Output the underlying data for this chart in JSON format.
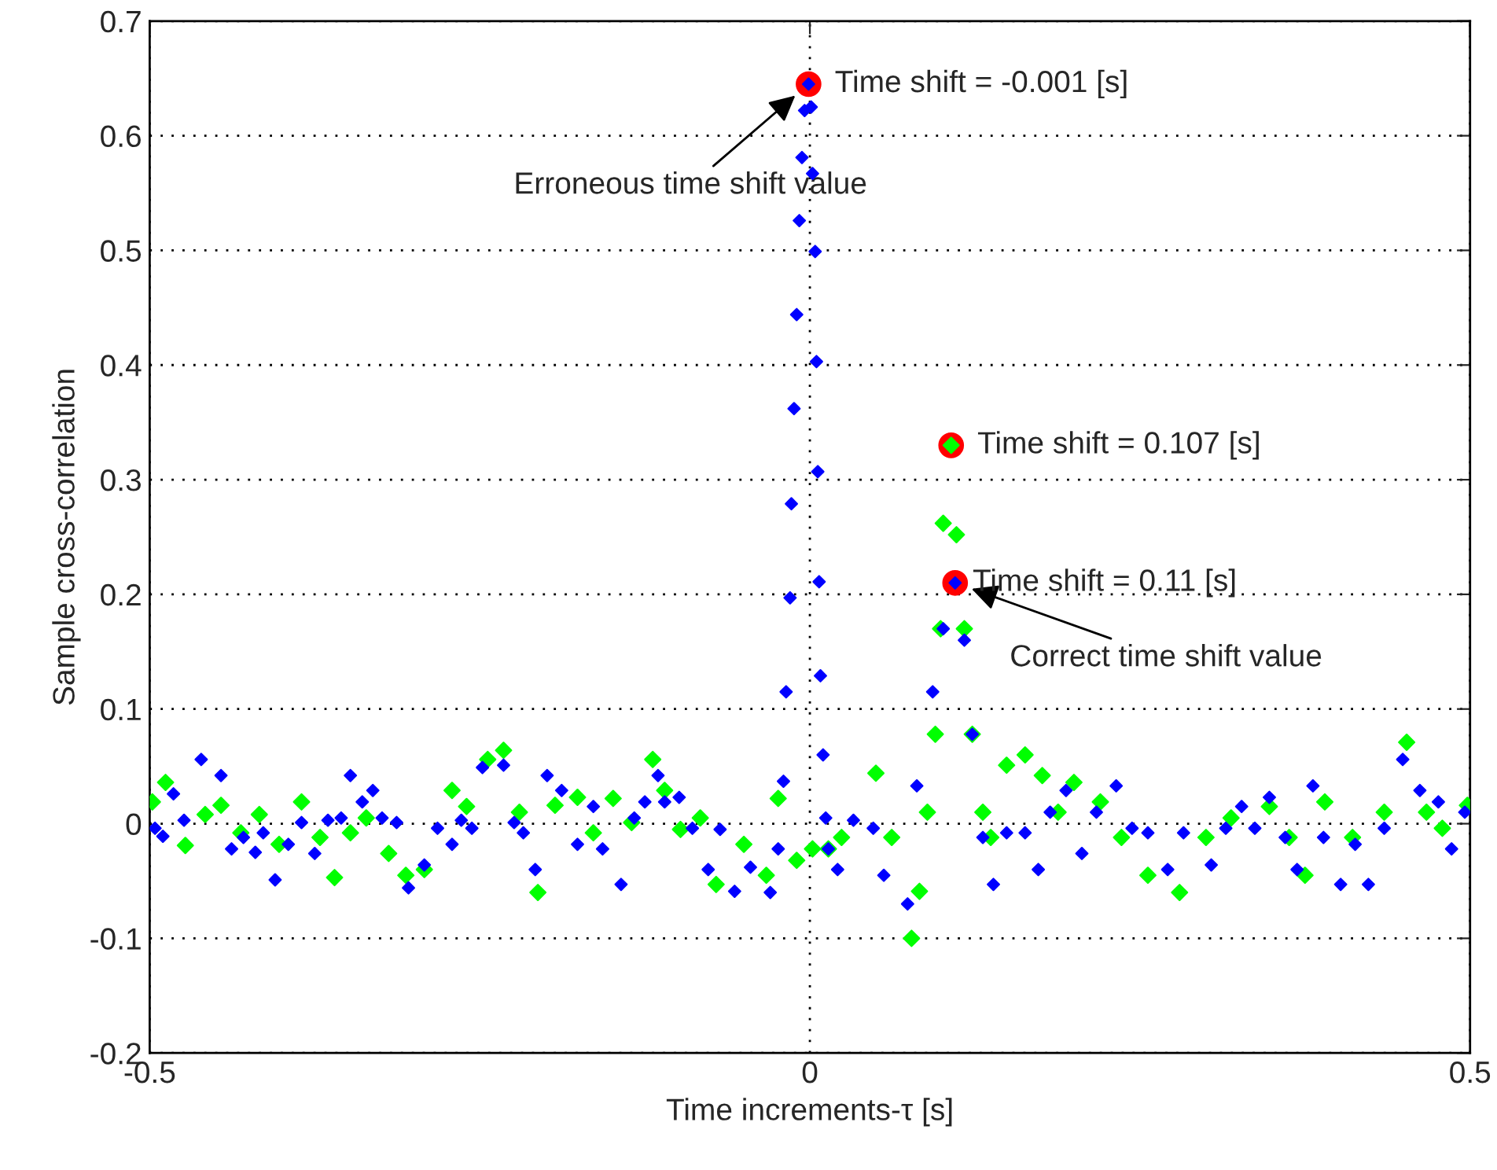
{
  "chart_data": {
    "type": "scatter",
    "xlabel": "Time increments-τ [s]",
    "ylabel": "Sample cross-correlation",
    "xlim": [
      -0.5,
      0.5
    ],
    "xticks": [
      -0.5,
      0,
      0.5
    ],
    "ylim": [
      -0.2,
      0.7
    ],
    "yticks": [
      -0.2,
      -0.1,
      0,
      0.1,
      0.2,
      0.3,
      0.4,
      0.5,
      0.6,
      0.7
    ],
    "grid": true,
    "marker": "diamond",
    "legend": false,
    "series": [
      {
        "color": "#00ff00",
        "x": [
          -0.498,
          -0.488,
          -0.473,
          -0.458,
          -0.446,
          -0.431,
          -0.417,
          -0.402,
          -0.385,
          -0.371,
          -0.36,
          -0.348,
          -0.336,
          -0.319,
          -0.306,
          -0.292,
          -0.271,
          -0.26,
          -0.244,
          -0.232,
          -0.22,
          -0.206,
          -0.193,
          -0.176,
          -0.164,
          -0.149,
          -0.135,
          -0.119,
          -0.11,
          -0.098,
          -0.083,
          -0.071,
          -0.05,
          -0.033,
          -0.024,
          -0.01,
          0.002,
          0.014,
          0.024,
          0.05,
          0.062,
          0.077,
          0.083,
          0.089,
          0.095,
          0.099,
          0.101,
          0.107,
          0.111,
          0.117,
          0.123,
          0.131,
          0.137,
          0.149,
          0.163,
          0.176,
          0.188,
          0.2,
          0.22,
          0.236,
          0.256,
          0.28,
          0.3,
          0.319,
          0.348,
          0.363,
          0.375,
          0.39,
          0.411,
          0.435,
          0.452,
          0.467,
          0.479,
          0.498
        ],
        "values": [
          0.019,
          0.036,
          -0.019,
          0.008,
          0.016,
          -0.008,
          0.008,
          -0.018,
          0.019,
          -0.012,
          -0.047,
          -0.008,
          0.005,
          -0.026,
          -0.045,
          -0.04,
          0.029,
          0.015,
          0.056,
          0.064,
          0.01,
          -0.06,
          0.016,
          0.023,
          -0.008,
          0.022,
          0.001,
          0.056,
          0.029,
          -0.005,
          0.005,
          -0.053,
          -0.018,
          -0.045,
          0.022,
          -0.032,
          -0.022,
          -0.022,
          -0.012,
          0.044,
          -0.012,
          -0.1,
          -0.059,
          0.01,
          0.078,
          0.17,
          0.262,
          0.33,
          0.252,
          0.17,
          0.078,
          0.01,
          -0.012,
          0.051,
          0.06,
          0.042,
          0.01,
          0.036,
          0.019,
          -0.012,
          -0.045,
          -0.06,
          -0.012,
          0.005,
          0.015,
          -0.012,
          -0.045,
          0.019,
          -0.012,
          0.01,
          0.071,
          0.01,
          -0.004,
          0.016
        ]
      },
      {
        "color": "#0000ff",
        "x": [
          -0.496,
          -0.49,
          -0.482,
          -0.474,
          -0.461,
          -0.446,
          -0.438,
          -0.429,
          -0.42,
          -0.414,
          -0.405,
          -0.395,
          -0.385,
          -0.375,
          -0.365,
          -0.355,
          -0.348,
          -0.339,
          -0.331,
          -0.324,
          -0.313,
          -0.304,
          -0.292,
          -0.282,
          -0.271,
          -0.264,
          -0.256,
          -0.248,
          -0.232,
          -0.224,
          -0.217,
          -0.208,
          -0.199,
          -0.188,
          -0.176,
          -0.164,
          -0.157,
          -0.143,
          -0.133,
          -0.125,
          -0.115,
          -0.11,
          -0.099,
          -0.089,
          -0.077,
          -0.068,
          -0.057,
          -0.045,
          -0.03,
          -0.024,
          -0.02,
          -0.018,
          -0.015,
          -0.014,
          -0.012,
          -0.01,
          -0.008,
          -0.006,
          -0.004,
          -0.001,
          0.001,
          0.002,
          0.004,
          0.005,
          0.006,
          0.007,
          0.008,
          0.01,
          0.012,
          0.014,
          0.021,
          0.033,
          0.048,
          0.056,
          0.074,
          0.081,
          0.093,
          0.101,
          0.11,
          0.117,
          0.123,
          0.131,
          0.139,
          0.149,
          0.163,
          0.173,
          0.182,
          0.194,
          0.206,
          0.217,
          0.232,
          0.244,
          0.256,
          0.271,
          0.283,
          0.304,
          0.315,
          0.327,
          0.337,
          0.348,
          0.36,
          0.369,
          0.381,
          0.389,
          0.402,
          0.413,
          0.423,
          0.435,
          0.449,
          0.462,
          0.476,
          0.486,
          0.496
        ],
        "values": [
          -0.004,
          -0.011,
          0.026,
          0.003,
          0.056,
          0.042,
          -0.022,
          -0.012,
          -0.025,
          -0.008,
          -0.049,
          -0.018,
          0.001,
          -0.026,
          0.003,
          0.005,
          0.042,
          0.019,
          0.029,
          0.005,
          0.001,
          -0.056,
          -0.036,
          -0.004,
          -0.018,
          0.003,
          -0.004,
          0.049,
          0.051,
          0.001,
          -0.008,
          -0.04,
          0.042,
          0.029,
          -0.018,
          0.015,
          -0.022,
          -0.053,
          0.005,
          0.019,
          0.042,
          0.019,
          0.023,
          -0.004,
          -0.04,
          -0.005,
          -0.059,
          -0.038,
          -0.06,
          -0.022,
          0.037,
          0.115,
          0.197,
          0.279,
          0.362,
          0.444,
          0.526,
          0.581,
          0.622,
          0.645,
          0.625,
          0.567,
          0.499,
          0.403,
          0.307,
          0.211,
          0.129,
          0.06,
          0.005,
          -0.022,
          -0.04,
          0.003,
          -0.004,
          -0.045,
          -0.07,
          0.033,
          0.115,
          0.17,
          0.21,
          0.16,
          0.078,
          -0.012,
          -0.053,
          -0.008,
          -0.008,
          -0.04,
          0.01,
          0.029,
          -0.026,
          0.01,
          0.033,
          -0.004,
          -0.008,
          -0.04,
          -0.008,
          -0.036,
          -0.004,
          0.015,
          -0.004,
          0.023,
          -0.012,
          -0.04,
          0.033,
          -0.012,
          -0.053,
          -0.018,
          -0.053,
          -0.004,
          0.056,
          0.029,
          0.019,
          -0.022,
          0.01
        ]
      },
      {
        "color": "#ff0000",
        "marker": "circle",
        "x": [
          -0.001,
          0.107,
          0.11
        ],
        "values": [
          0.645,
          0.33,
          0.21
        ]
      }
    ],
    "annotations": [
      {
        "text": "Time shift = -0.001 [s]",
        "x": -0.001,
        "y": 0.645
      },
      {
        "text": "Time shift = 0.107 [s]",
        "x": 0.107,
        "y": 0.33
      },
      {
        "text": "Time shift = 0.11 [s]",
        "x": 0.11,
        "y": 0.21
      },
      {
        "text": "Erroneous time shift value",
        "x": -0.001,
        "y": 0.645
      },
      {
        "text": "Correct time shift value",
        "x": 0.11,
        "y": 0.21
      }
    ]
  }
}
